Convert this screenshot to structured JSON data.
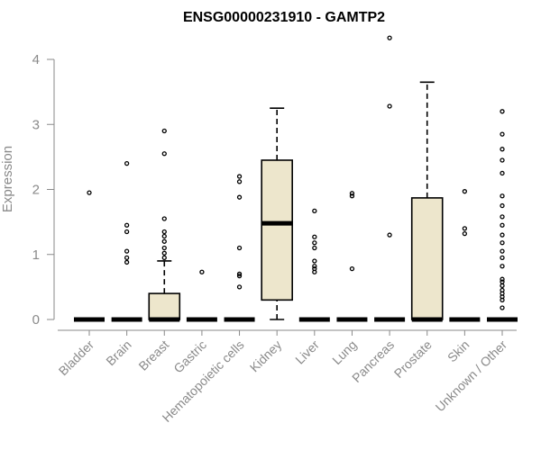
{
  "chart_data": {
    "type": "box",
    "title": "ENSG00000231910 - GAMTP2",
    "xlabel": "",
    "ylabel": "Expression",
    "ylim": [
      0,
      4.3
    ],
    "yticks": [
      0,
      1,
      2,
      3,
      4
    ],
    "grid": false,
    "legend": "none",
    "colors": {
      "box_fill": "#ede6cc",
      "line": "#000000",
      "axis": "#8a8a8a",
      "text": "#8a8a8a",
      "title": "#000000"
    },
    "categories": [
      "Bladder",
      "Brain",
      "Breast",
      "Gastric",
      "Hematopoietic cells",
      "Kidney",
      "Liver",
      "Lung",
      "Pancreas",
      "Prostate",
      "Skin",
      "Unknown / Other"
    ],
    "boxes": [
      {
        "category": "Bladder",
        "q1": 0,
        "median": 0,
        "q3": 0,
        "whisker_low": 0,
        "whisker_high": 0,
        "outliers": [
          1.95
        ]
      },
      {
        "category": "Brain",
        "q1": 0,
        "median": 0,
        "q3": 0,
        "whisker_low": 0,
        "whisker_high": 0,
        "outliers": [
          2.4,
          1.45,
          1.35,
          1.05,
          0.95,
          0.88
        ]
      },
      {
        "category": "Breast",
        "q1": 0,
        "median": 0,
        "q3": 0.4,
        "whisker_low": 0,
        "whisker_high": 0.9,
        "outliers": [
          2.9,
          2.55,
          1.55,
          1.35,
          1.28,
          1.2,
          1.1,
          1.02,
          0.95
        ]
      },
      {
        "category": "Gastric",
        "q1": 0,
        "median": 0,
        "q3": 0,
        "whisker_low": 0,
        "whisker_high": 0,
        "outliers": [
          0.73
        ]
      },
      {
        "category": "Hematopoietic cells",
        "q1": 0,
        "median": 0,
        "q3": 0,
        "whisker_low": 0,
        "whisker_high": 0,
        "outliers": [
          2.2,
          2.12,
          1.88,
          1.1,
          0.7,
          0.67,
          0.5
        ]
      },
      {
        "category": "Kidney",
        "q1": 0.3,
        "median": 1.48,
        "q3": 2.45,
        "whisker_low": 0,
        "whisker_high": 3.25,
        "outliers": []
      },
      {
        "category": "Liver",
        "q1": 0,
        "median": 0,
        "q3": 0,
        "whisker_low": 0,
        "whisker_high": 0,
        "outliers": [
          1.67,
          1.27,
          1.18,
          1.1,
          0.9,
          0.82,
          0.78,
          0.73
        ]
      },
      {
        "category": "Lung",
        "q1": 0,
        "median": 0,
        "q3": 0,
        "whisker_low": 0,
        "whisker_high": 0,
        "outliers": [
          1.94,
          1.9,
          0.78
        ]
      },
      {
        "category": "Pancreas",
        "q1": 0,
        "median": 0,
        "q3": 0,
        "whisker_low": 0,
        "whisker_high": 0,
        "outliers": [
          4.33,
          3.28,
          1.3
        ]
      },
      {
        "category": "Prostate",
        "q1": 0,
        "median": 0,
        "q3": 1.87,
        "whisker_low": 0,
        "whisker_high": 3.65,
        "outliers": []
      },
      {
        "category": "Skin",
        "q1": 0,
        "median": 0,
        "q3": 0,
        "whisker_low": 0,
        "whisker_high": 0,
        "outliers": [
          1.97,
          1.4,
          1.32
        ]
      },
      {
        "category": "Unknown / Other",
        "q1": 0,
        "median": 0,
        "q3": 0,
        "whisker_low": 0,
        "whisker_high": 0,
        "outliers": [
          3.2,
          2.85,
          2.62,
          2.45,
          2.25,
          1.9,
          1.75,
          1.58,
          1.45,
          1.3,
          1.18,
          1.05,
          0.95,
          0.82,
          0.62,
          0.58,
          0.52,
          0.45,
          0.4,
          0.35,
          0.3,
          0.18
        ]
      }
    ]
  }
}
